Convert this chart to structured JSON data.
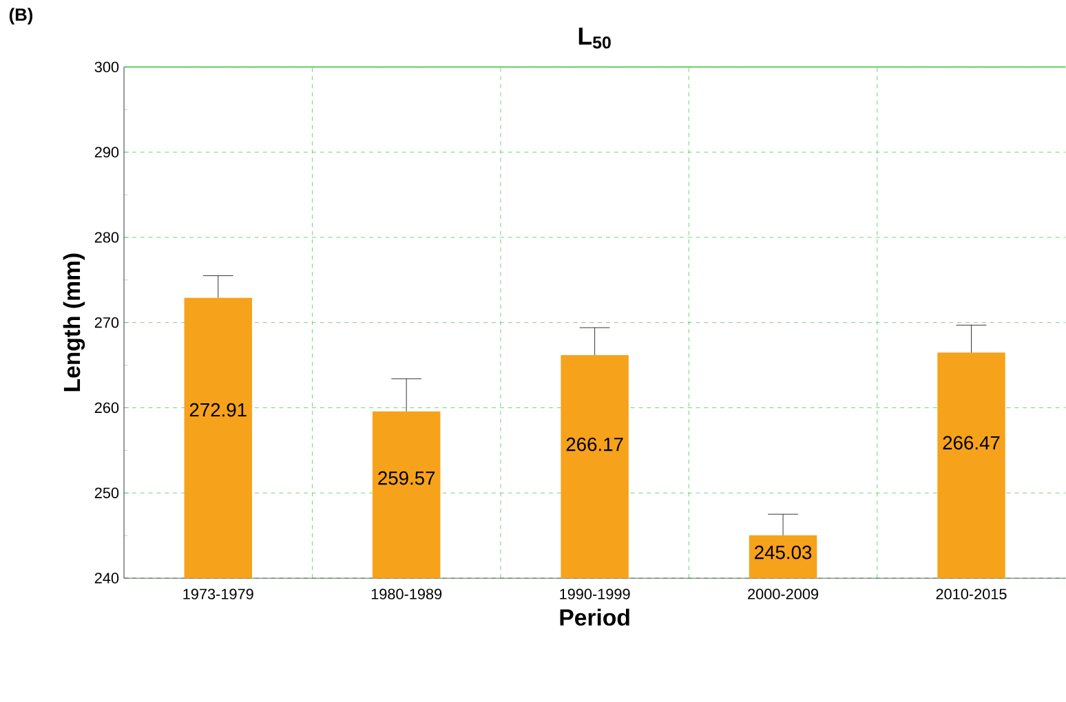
{
  "chart_data": {
    "type": "bar",
    "title": "L$_{50}$",
    "xlabel": "Period",
    "ylabel": "Length (mm)",
    "annotations": [
      "(B)"
    ],
    "categories": [
      "1973-1979",
      "1980-1989",
      "1990-1999",
      "2000-2009",
      "2010-2015"
    ],
    "values": [
      272.91,
      259.57,
      266.17,
      245.03,
      266.47
    ],
    "errors": [
      [
        272.91,
        275.5
      ],
      [
        259.57,
        263.4
      ],
      [
        266.17,
        269.4
      ],
      [
        245.03,
        247.5
      ],
      [
        266.47,
        269.7
      ]
    ],
    "color": "#f7a21b",
    "ylim": [
      240,
      300
    ],
    "yticks": [
      240,
      250,
      260,
      270,
      280,
      290,
      300
    ],
    "grid": true,
    "data_labels": true
  }
}
